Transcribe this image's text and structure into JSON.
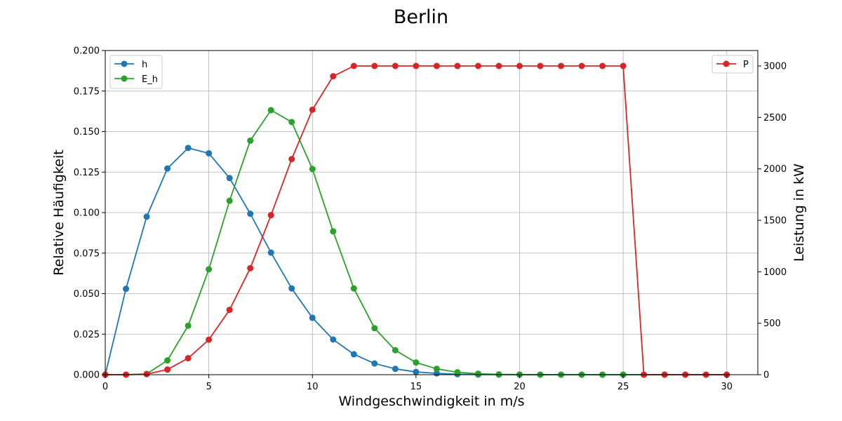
{
  "chart_data": {
    "type": "line",
    "title": "Berlin",
    "xlabel": "Windgeschwindigkeit in m/s",
    "ylabel_left": "Relative Häufigkeit",
    "ylabel_right": "Leistung in kW",
    "xlim": [
      0,
      31.5
    ],
    "ylim_left": [
      0,
      0.2
    ],
    "ylim_right": [
      0,
      3150
    ],
    "x_ticks": [
      0,
      5,
      10,
      15,
      20,
      25,
      30
    ],
    "y_left_ticks": [
      "0.000",
      "0.025",
      "0.050",
      "0.075",
      "0.100",
      "0.125",
      "0.150",
      "0.175",
      "0.200"
    ],
    "y_right_ticks": [
      "0",
      "500",
      "1000",
      "1500",
      "2000",
      "2500",
      "3000"
    ],
    "grid": true,
    "legend_left_position": "upper-left",
    "legend_right_position": "upper-right",
    "x": [
      0,
      1,
      2,
      3,
      4,
      5,
      6,
      7,
      8,
      9,
      10,
      11,
      12,
      13,
      14,
      15,
      16,
      17,
      18,
      19,
      20,
      21,
      22,
      23,
      24,
      25,
      26,
      27,
      28,
      29,
      30
    ],
    "series": [
      {
        "name": "h",
        "axis": "left",
        "color": "#1f77b4",
        "values": [
          0.0,
          0.053,
          0.0975,
          0.1272,
          0.1399,
          0.1366,
          0.1213,
          0.0993,
          0.0753,
          0.0532,
          0.0351,
          0.0217,
          0.0126,
          0.0069,
          0.0036,
          0.0017,
          0.0008,
          0.0003,
          0.0001,
          5e-05,
          2e-05,
          0.0,
          0.0,
          0.0,
          0.0,
          0.0,
          0.0,
          0.0,
          0.0,
          0.0,
          0.0
        ]
      },
      {
        "name": "E_h",
        "axis": "left",
        "color": "#2ca02c",
        "values": [
          0.0,
          0.0,
          0.0005,
          0.0088,
          0.0302,
          0.065,
          0.1073,
          0.1444,
          0.1632,
          0.1559,
          0.1269,
          0.0884,
          0.0532,
          0.0287,
          0.0151,
          0.0075,
          0.0036,
          0.0015,
          0.0006,
          0.0002,
          0.0001,
          0.0,
          0.0,
          0.0,
          0.0,
          0.0,
          0.0,
          0.0,
          0.0,
          0.0,
          0.0
        ]
      },
      {
        "name": "P",
        "axis": "right",
        "color": "#d62728",
        "values": [
          0,
          0,
          5,
          50,
          160,
          340,
          630,
          1035,
          1550,
          2095,
          2575,
          2900,
          3000,
          3000,
          3000,
          3000,
          3000,
          3000,
          3000,
          3000,
          3000,
          3000,
          3000,
          3000,
          3000,
          3000,
          0,
          0,
          0,
          0,
          0
        ]
      }
    ]
  }
}
